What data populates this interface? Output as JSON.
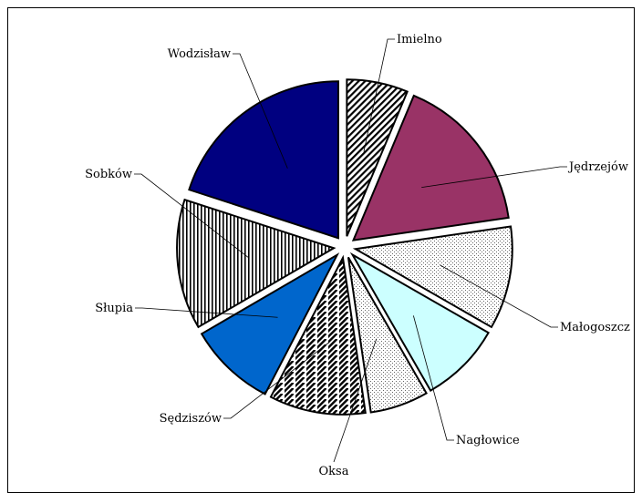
{
  "chart_data": {
    "type": "pie",
    "title": "",
    "exploded": true,
    "start": "12 o'clock",
    "direction": "clockwise",
    "slices": [
      {
        "label": "Imielno",
        "value": 6.3,
        "color": "#ffffff",
        "pattern": "diag-stripe"
      },
      {
        "label": "Jędrzejów",
        "value": 16.4,
        "color": "#993366",
        "pattern": "solid"
      },
      {
        "label": "Małogoszcz",
        "value": 10.6,
        "color": "#ffffff",
        "pattern": "dots"
      },
      {
        "label": "Nagłowice",
        "value": 8.4,
        "color": "#ccffff",
        "pattern": "solid"
      },
      {
        "label": "Oksa",
        "value": 6.0,
        "color": "#ffffff",
        "pattern": "dots"
      },
      {
        "label": "Sędziszów",
        "value": 9.9,
        "color": "#ffffff",
        "pattern": "diag-stripe-vertical"
      },
      {
        "label": "Słupia",
        "value": 9.0,
        "color": "#0066cc",
        "pattern": "solid"
      },
      {
        "label": "Sobków",
        "value": 13.4,
        "color": "#ffffff",
        "pattern": "vertical-stripe"
      },
      {
        "label": "Wodzisław",
        "value": 20.0,
        "color": "#000080",
        "pattern": "solid"
      }
    ]
  }
}
